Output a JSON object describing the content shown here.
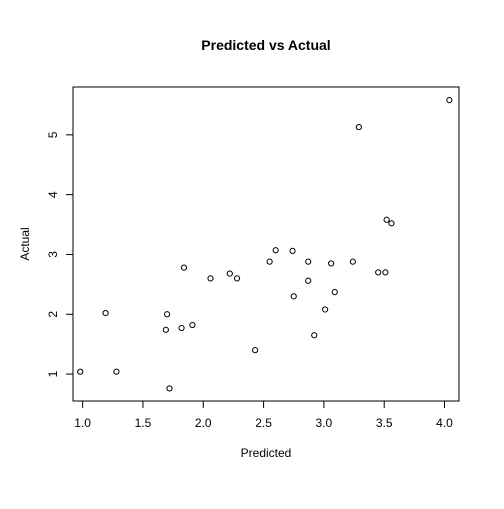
{
  "chart_data": {
    "type": "scatter",
    "title": "Predicted vs Actual",
    "xlabel": "Predicted",
    "ylabel": "Actual",
    "xlim": [
      0.92,
      4.12
    ],
    "ylim": [
      0.55,
      5.8
    ],
    "x_ticks": [
      1.0,
      1.5,
      2.0,
      2.5,
      3.0,
      3.5,
      4.0
    ],
    "x_tick_labels": [
      "1.0",
      "1.5",
      "2.0",
      "2.5",
      "3.0",
      "3.5",
      "4.0"
    ],
    "y_ticks": [
      1,
      2,
      3,
      4,
      5
    ],
    "y_tick_labels": [
      "1",
      "2",
      "3",
      "4",
      "5"
    ],
    "grid": false,
    "legend": "none",
    "marker": "open-circle",
    "points": [
      {
        "x": 0.98,
        "y": 1.04
      },
      {
        "x": 1.19,
        "y": 2.02
      },
      {
        "x": 1.28,
        "y": 1.04
      },
      {
        "x": 1.69,
        "y": 1.74
      },
      {
        "x": 1.7,
        "y": 2.0
      },
      {
        "x": 1.72,
        "y": 0.76
      },
      {
        "x": 1.82,
        "y": 1.77
      },
      {
        "x": 1.84,
        "y": 2.78
      },
      {
        "x": 1.91,
        "y": 1.82
      },
      {
        "x": 2.06,
        "y": 2.6
      },
      {
        "x": 2.22,
        "y": 2.68
      },
      {
        "x": 2.28,
        "y": 2.6
      },
      {
        "x": 2.43,
        "y": 1.4
      },
      {
        "x": 2.55,
        "y": 2.88
      },
      {
        "x": 2.6,
        "y": 3.07
      },
      {
        "x": 2.74,
        "y": 3.06
      },
      {
        "x": 2.75,
        "y": 2.3
      },
      {
        "x": 2.87,
        "y": 2.88
      },
      {
        "x": 2.87,
        "y": 2.56
      },
      {
        "x": 2.92,
        "y": 1.65
      },
      {
        "x": 3.01,
        "y": 2.08
      },
      {
        "x": 3.06,
        "y": 2.85
      },
      {
        "x": 3.09,
        "y": 2.37
      },
      {
        "x": 3.24,
        "y": 2.88
      },
      {
        "x": 3.29,
        "y": 5.13
      },
      {
        "x": 3.45,
        "y": 2.7
      },
      {
        "x": 3.51,
        "y": 2.7
      },
      {
        "x": 3.52,
        "y": 3.58
      },
      {
        "x": 3.56,
        "y": 3.52
      },
      {
        "x": 4.04,
        "y": 5.58
      }
    ]
  }
}
